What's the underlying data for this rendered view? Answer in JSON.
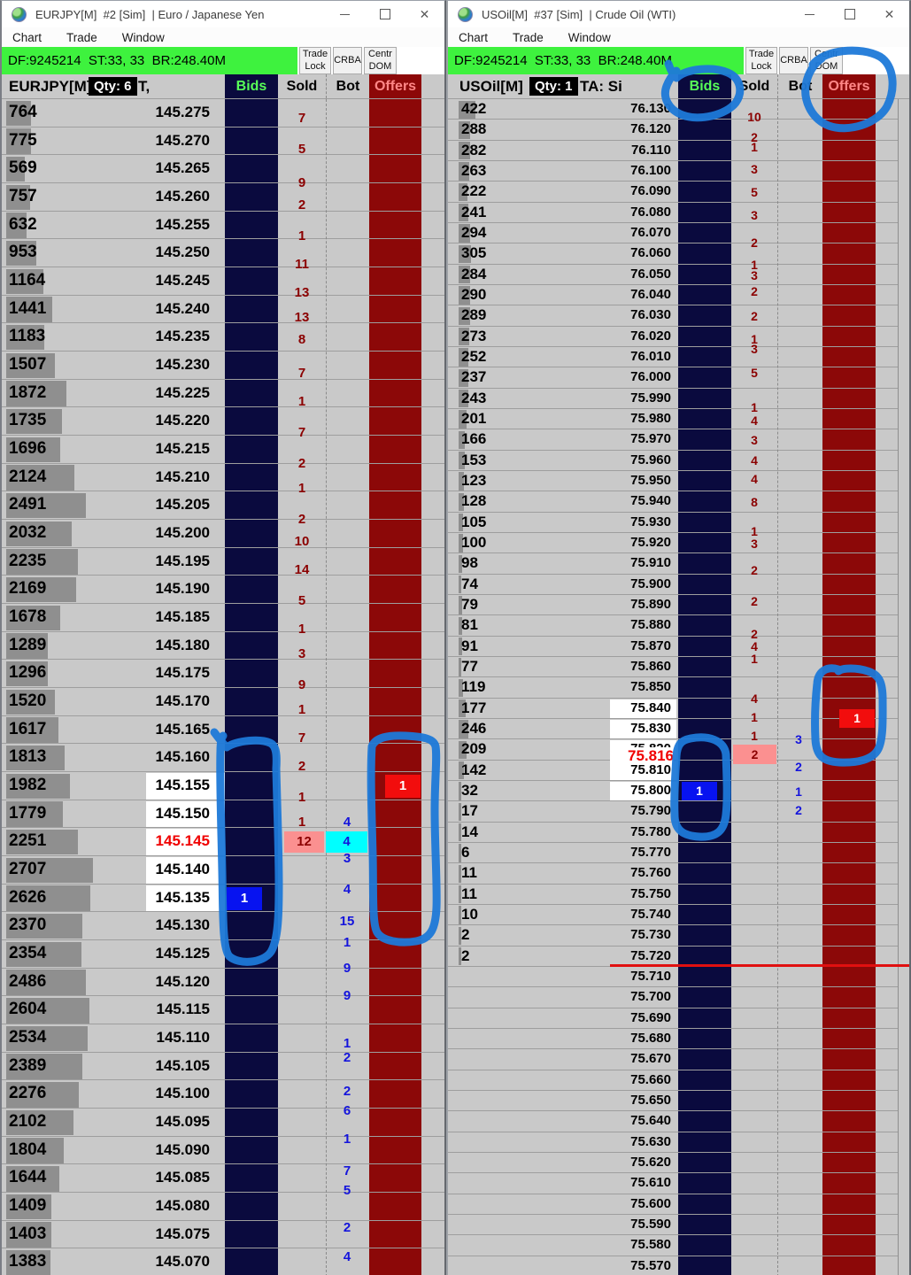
{
  "colors": {
    "banner_green": "#3ef23e",
    "ladder_bg": "#c9c9c9",
    "grid": "#9e9e9e",
    "vol_bar": "#8f8f8f",
    "bids_col": "#0a0a3e",
    "offers_col": "#8c0808",
    "bids_label": "#58ff58",
    "offers_label": "#ff8787",
    "sold_text": "#8b0000",
    "bot_text": "#1414dc",
    "pink_box": "#fb9090",
    "cyan_box": "#00ffff",
    "bid_box": "#0713f0",
    "offer_box": "#f20d0d",
    "last_price_red": "#f00000",
    "annotation": "#1d79d8",
    "session_line_red": "#e01010"
  },
  "windows": [
    {
      "title": "EURJPY[M]  #2 [Sim]  | Euro / Japanese Yen",
      "menu": [
        "Chart",
        "Trade",
        "Window"
      ],
      "info": "DF:9245214  ST:33, 33  BR:248.40M",
      "buttons": [
        "Trade\nLock",
        "CRBA",
        "Centr\nDOM"
      ],
      "header": {
        "instrument": "EURJPY[M]",
        "qty": "Qty: 6",
        "ta": "T,",
        "bids": "Bids",
        "sold": "Sold",
        "bot": "Bot",
        "offers": "Offers"
      },
      "ladder": {
        "rows": [
          {
            "v": "764",
            "p": "145.275"
          },
          {
            "v": "775",
            "p": "145.270"
          },
          {
            "v": "569",
            "p": "145.265"
          },
          {
            "v": "757",
            "p": "145.260"
          },
          {
            "v": "632",
            "p": "145.255"
          },
          {
            "v": "953",
            "p": "145.250"
          },
          {
            "v": "1164",
            "p": "145.245"
          },
          {
            "v": "1441",
            "p": "145.240"
          },
          {
            "v": "1183",
            "p": "145.235"
          },
          {
            "v": "1507",
            "p": "145.230"
          },
          {
            "v": "1872",
            "p": "145.225"
          },
          {
            "v": "1735",
            "p": "145.220"
          },
          {
            "v": "1696",
            "p": "145.215"
          },
          {
            "v": "2124",
            "p": "145.210"
          },
          {
            "v": "2491",
            "p": "145.205"
          },
          {
            "v": "2032",
            "p": "145.200"
          },
          {
            "v": "2235",
            "p": "145.195"
          },
          {
            "v": "2169",
            "p": "145.190"
          },
          {
            "v": "1678",
            "p": "145.185"
          },
          {
            "v": "1289",
            "p": "145.180"
          },
          {
            "v": "1296",
            "p": "145.175"
          },
          {
            "v": "1520",
            "p": "145.170"
          },
          {
            "v": "1617",
            "p": "145.165"
          },
          {
            "v": "1813",
            "p": "145.160"
          },
          {
            "v": "1982",
            "p": "145.155"
          },
          {
            "v": "1779",
            "p": "145.150"
          },
          {
            "v": "2251",
            "p": "145.145"
          },
          {
            "v": "2707",
            "p": "145.140"
          },
          {
            "v": "2626",
            "p": "145.135"
          },
          {
            "v": "2370",
            "p": "145.130"
          },
          {
            "v": "2354",
            "p": "145.125"
          },
          {
            "v": "2486",
            "p": "145.120"
          },
          {
            "v": "2604",
            "p": "145.115"
          },
          {
            "v": "2534",
            "p": "145.110"
          },
          {
            "v": "2389",
            "p": "145.105"
          },
          {
            "v": "2276",
            "p": "145.100"
          },
          {
            "v": "2102",
            "p": "145.095"
          },
          {
            "v": "1804",
            "p": "145.090"
          },
          {
            "v": "1644",
            "p": "145.085"
          },
          {
            "v": "1409",
            "p": "145.080"
          },
          {
            "v": "1403",
            "p": "145.075"
          },
          {
            "v": "1383",
            "p": "145.070"
          }
        ],
        "white_rows": [
          24,
          25,
          26,
          27,
          28
        ],
        "last_trade_row": 26,
        "sold": [
          {
            "r": 0.2,
            "v": "7"
          },
          {
            "r": 1.3,
            "v": "5"
          },
          {
            "r": 2.5,
            "v": "9"
          },
          {
            "r": 3.3,
            "v": "2"
          },
          {
            "r": 4.4,
            "v": "1"
          },
          {
            "r": 5.4,
            "v": "11"
          },
          {
            "r": 6.4,
            "v": "13"
          },
          {
            "r": 7.3,
            "v": "13"
          },
          {
            "r": 8.1,
            "v": "8"
          },
          {
            "r": 9.3,
            "v": "7"
          },
          {
            "r": 10.3,
            "v": "1"
          },
          {
            "r": 11.4,
            "v": "7"
          },
          {
            "r": 12.5,
            "v": "2"
          },
          {
            "r": 13.4,
            "v": "1"
          },
          {
            "r": 14.5,
            "v": "2"
          },
          {
            "r": 15.3,
            "v": "10"
          },
          {
            "r": 16.3,
            "v": "14"
          },
          {
            "r": 17.4,
            "v": "5"
          },
          {
            "r": 18.4,
            "v": "1"
          },
          {
            "r": 19.3,
            "v": "3"
          },
          {
            "r": 20.4,
            "v": "9"
          },
          {
            "r": 21.3,
            "v": "1"
          },
          {
            "r": 22.3,
            "v": "7"
          },
          {
            "r": 23.3,
            "v": "2"
          },
          {
            "r": 24.4,
            "v": "1"
          },
          {
            "r": 25.3,
            "v": "1"
          }
        ],
        "bot": [
          {
            "r": 25.3,
            "v": "4"
          },
          {
            "r": 26.6,
            "v": "3"
          },
          {
            "r": 27.7,
            "v": "4"
          },
          {
            "r": 28.85,
            "v": "15"
          },
          {
            "r": 29.6,
            "v": "1"
          },
          {
            "r": 30.5,
            "v": "9"
          },
          {
            "r": 31.5,
            "v": "9"
          },
          {
            "r": 33.2,
            "v": "1"
          },
          {
            "r": 33.7,
            "v": "2"
          },
          {
            "r": 34.9,
            "v": "2"
          },
          {
            "r": 35.6,
            "v": "6"
          },
          {
            "r": 36.6,
            "v": "1"
          },
          {
            "r": 37.75,
            "v": "7"
          },
          {
            "r": 38.45,
            "v": "5"
          },
          {
            "r": 39.75,
            "v": "2"
          },
          {
            "r": 40.8,
            "v": "4"
          }
        ],
        "bid_box": {
          "r": 28,
          "v": "1"
        },
        "offer_box": {
          "r": 24,
          "v": "1"
        },
        "pink_box": {
          "r": 26,
          "v": "12"
        },
        "cyan_box": {
          "r": 26,
          "v": "4"
        }
      }
    },
    {
      "title": "USOil[M]  #37 [Sim]  | Crude Oil (WTI)",
      "menu": [
        "Chart",
        "Trade",
        "Window"
      ],
      "info": "DF:9245214  ST:33, 33  BR:248.40M",
      "buttons": [
        "Trade\nLock",
        "CRBA",
        "Centr\nDOM"
      ],
      "header": {
        "instrument": "USOil[M]",
        "qty": "Qty: 1",
        "ta": "TA: Si",
        "bids": "Bids",
        "sold": "Sold",
        "bot": "Bot",
        "offers": "Offers"
      },
      "ladder": {
        "rows": [
          {
            "v": "422",
            "p": "76.130"
          },
          {
            "v": "288",
            "p": "76.120"
          },
          {
            "v": "282",
            "p": "76.110"
          },
          {
            "v": "263",
            "p": "76.100"
          },
          {
            "v": "222",
            "p": "76.090"
          },
          {
            "v": "241",
            "p": "76.080"
          },
          {
            "v": "294",
            "p": "76.070"
          },
          {
            "v": "305",
            "p": "76.060"
          },
          {
            "v": "284",
            "p": "76.050"
          },
          {
            "v": "290",
            "p": "76.040"
          },
          {
            "v": "289",
            "p": "76.030"
          },
          {
            "v": "273",
            "p": "76.020"
          },
          {
            "v": "252",
            "p": "76.010"
          },
          {
            "v": "237",
            "p": "76.000"
          },
          {
            "v": "243",
            "p": "75.990"
          },
          {
            "v": "201",
            "p": "75.980"
          },
          {
            "v": "166",
            "p": "75.970"
          },
          {
            "v": "153",
            "p": "75.960"
          },
          {
            "v": "123",
            "p": "75.950"
          },
          {
            "v": "128",
            "p": "75.940"
          },
          {
            "v": "105",
            "p": "75.930"
          },
          {
            "v": "100",
            "p": "75.920"
          },
          {
            "v": "98",
            "p": "75.910"
          },
          {
            "v": "74",
            "p": "75.900"
          },
          {
            "v": "79",
            "p": "75.890"
          },
          {
            "v": "81",
            "p": "75.880"
          },
          {
            "v": "91",
            "p": "75.870"
          },
          {
            "v": "77",
            "p": "75.860"
          },
          {
            "v": "119",
            "p": "75.850"
          },
          {
            "v": "177",
            "p": "75.840"
          },
          {
            "v": "246",
            "p": "75.830"
          },
          {
            "v": "209",
            "p": "75.820"
          },
          {
            "v": "142",
            "p": "75.810"
          },
          {
            "v": "32",
            "p": "75.800"
          },
          {
            "v": "17",
            "p": "75.790"
          },
          {
            "v": "14",
            "p": "75.780"
          },
          {
            "v": "6",
            "p": "75.770"
          },
          {
            "v": "11",
            "p": "75.760"
          },
          {
            "v": "11",
            "p": "75.750"
          },
          {
            "v": "10",
            "p": "75.740"
          },
          {
            "v": "2",
            "p": "75.730"
          },
          {
            "v": "2",
            "p": "75.720"
          },
          {
            "v": "",
            "p": "75.710"
          },
          {
            "v": "",
            "p": "75.700"
          },
          {
            "v": "",
            "p": "75.690"
          },
          {
            "v": "",
            "p": "75.680"
          },
          {
            "v": "",
            "p": "75.670"
          },
          {
            "v": "",
            "p": "75.660"
          },
          {
            "v": "",
            "p": "75.650"
          },
          {
            "v": "",
            "p": "75.640"
          },
          {
            "v": "",
            "p": "75.630"
          },
          {
            "v": "",
            "p": "75.620"
          },
          {
            "v": "",
            "p": "75.610"
          },
          {
            "v": "",
            "p": "75.600"
          },
          {
            "v": "",
            "p": "75.590"
          },
          {
            "v": "",
            "p": "75.580"
          },
          {
            "v": "",
            "p": "75.570"
          }
        ],
        "white_rows": [
          29,
          30,
          31,
          32,
          33
        ],
        "sold": [
          {
            "r": 0.35,
            "v": "10"
          },
          {
            "r": 1.35,
            "v": "2"
          },
          {
            "r": 1.8,
            "v": "1"
          },
          {
            "r": 2.9,
            "v": "3"
          },
          {
            "r": 4.0,
            "v": "5"
          },
          {
            "r": 5.1,
            "v": "3"
          },
          {
            "r": 6.45,
            "v": "2"
          },
          {
            "r": 7.5,
            "v": "1"
          },
          {
            "r": 8.05,
            "v": "3"
          },
          {
            "r": 8.8,
            "v": "2"
          },
          {
            "r": 10.0,
            "v": "2"
          },
          {
            "r": 11.1,
            "v": "1"
          },
          {
            "r": 11.6,
            "v": "3"
          },
          {
            "r": 12.75,
            "v": "5"
          },
          {
            "r": 14.4,
            "v": "1"
          },
          {
            "r": 15.05,
            "v": "4"
          },
          {
            "r": 16.0,
            "v": "3"
          },
          {
            "r": 17.0,
            "v": "4"
          },
          {
            "r": 17.9,
            "v": "4"
          },
          {
            "r": 19.0,
            "v": "8"
          },
          {
            "r": 20.4,
            "v": "1"
          },
          {
            "r": 21.0,
            "v": "3"
          },
          {
            "r": 22.3,
            "v": "2"
          },
          {
            "r": 23.8,
            "v": "2"
          },
          {
            "r": 25.4,
            "v": "2"
          },
          {
            "r": 26.0,
            "v": "4"
          },
          {
            "r": 26.6,
            "v": "1"
          },
          {
            "r": 28.5,
            "v": "4"
          },
          {
            "r": 29.4,
            "v": "1"
          },
          {
            "r": 30.3,
            "v": "1"
          }
        ],
        "bot": [
          {
            "r": 30.5,
            "v": "3"
          },
          {
            "r": 31.8,
            "v": "2"
          },
          {
            "r": 33.0,
            "v": "1"
          },
          {
            "r": 33.9,
            "v": "2"
          }
        ],
        "bid_box": {
          "r": 33,
          "v": "1"
        },
        "offer_box": {
          "r": 29.5,
          "v": "1"
        },
        "pink_box": {
          "r": 31.2,
          "v": "2"
        },
        "last_trade_overlay": {
          "r": 31.3,
          "v": "75.816"
        },
        "red_line_after_row": 41
      }
    }
  ]
}
